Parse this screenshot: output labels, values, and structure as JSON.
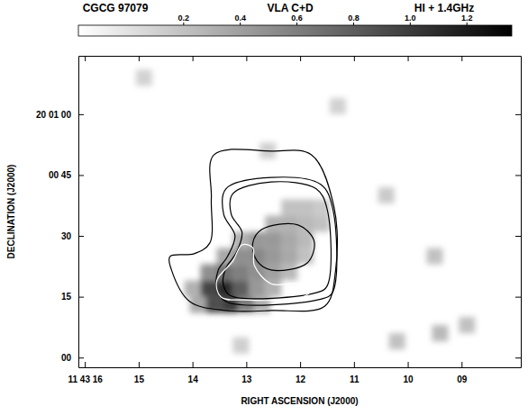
{
  "chart_data": {
    "type": "heatmap",
    "title": "CGCG 97079",
    "subtitle": "VLA C+D",
    "annotation": "HI + 1.4GHz",
    "x_label": "RIGHT ASCENSION (J2000)",
    "y_label": "DECLINATION (J2000)",
    "xlim": [
      16.12,
      7.9
    ],
    "ylim": [
      -2.4,
      74.4
    ],
    "xticks": [
      {
        "value": 16,
        "label": "11 43 16"
      },
      15,
      14,
      13,
      12,
      11,
      10,
      {
        "value": 9,
        "label": "09"
      }
    ],
    "yticks": [
      {
        "value": 0,
        "label": "00"
      },
      15,
      30,
      {
        "value": 45,
        "label": "00 45"
      },
      {
        "value": 60,
        "label": "20 01 00"
      }
    ],
    "colorbar": {
      "range": [
        -0.17,
        1.36
      ],
      "ticks": [
        0.2,
        0.4,
        0.6,
        0.8,
        {
          "value": 1.0,
          "label": "1.0"
        },
        1.2
      ]
    },
    "cell_size": [
      0.3,
      4
    ],
    "cells": {
      "x": [
        13.9,
        13.6,
        13.3,
        13.0,
        12.7,
        14.0,
        13.7,
        13.4,
        13.1,
        12.8,
        12.5,
        13.7,
        13.4,
        13.1,
        12.8,
        12.5,
        12.2,
        13.4,
        13.1,
        12.8,
        12.5,
        12.2,
        11.9,
        13.1,
        12.8,
        12.5,
        12.2,
        11.9,
        12.5,
        12.2,
        11.9,
        11.6,
        12.2,
        11.9,
        11.6,
        10.4,
        9.5,
        10.2,
        9.4,
        8.9,
        12.6,
        14.9,
        11.3,
        13.1
      ],
      "y": [
        13,
        13,
        13,
        13,
        13,
        17,
        17,
        17,
        17,
        17,
        17,
        21,
        21,
        21,
        21,
        21,
        21,
        25,
        25,
        25,
        25,
        25,
        25,
        29,
        29,
        29,
        29,
        29,
        33,
        33,
        33,
        33,
        37,
        37,
        37,
        40,
        25,
        4,
        6,
        8,
        51,
        69,
        62,
        3
      ],
      "values": [
        0.35,
        0.9,
        1.0,
        0.6,
        0.3,
        0.3,
        0.95,
        1.1,
        0.8,
        0.45,
        0.3,
        0.5,
        0.7,
        0.6,
        0.5,
        0.4,
        0.25,
        0.35,
        0.5,
        0.55,
        0.45,
        0.35,
        0.2,
        0.3,
        0.45,
        0.45,
        0.35,
        0.25,
        0.3,
        0.3,
        0.25,
        0.2,
        0.2,
        0.2,
        0.15,
        0.15,
        0.2,
        0.2,
        0.25,
        0.2,
        0.12,
        0.1,
        0.1,
        0.12
      ]
    },
    "contours": [
      {
        "color": "black",
        "x": [
          13.6,
          12.54,
          11.79,
          11.37,
          11.34,
          11.54,
          12.54,
          13.38,
          14.05,
          14.39,
          14.42,
          13.97,
          13.68,
          13.65
        ],
        "y": [
          50.0,
          50.9,
          50.0,
          37.1,
          21.6,
          12.7,
          11.6,
          11.6,
          13.8,
          21.6,
          24.9,
          25.6,
          28.2,
          39.3
        ]
      },
      {
        "color": "black",
        "x": [
          13.38,
          12.54,
          11.62,
          11.4,
          11.4,
          11.62,
          13.38,
          13.55,
          13.52,
          13.35,
          13.21,
          13.42
        ],
        "y": [
          41.6,
          44.4,
          42.7,
          37.1,
          16.0,
          14.4,
          13.8,
          17.1,
          21.6,
          24.9,
          30.0,
          35.3
        ]
      },
      {
        "color": "black",
        "x": [
          13.25,
          12.54,
          11.7,
          11.5,
          11.5,
          11.7,
          13.3,
          13.43,
          13.38,
          13.18,
          13.08,
          13.28
        ],
        "y": [
          40.4,
          43.3,
          41.6,
          36.7,
          17.6,
          16.0,
          15.3,
          18.2,
          22.0,
          26.0,
          30.9,
          35.3
        ]
      },
      {
        "color": "black",
        "x": [
          12.71,
          12.04,
          11.74,
          11.87,
          12.54,
          12.8,
          12.88
        ],
        "y": [
          31.6,
          32.7,
          28.7,
          23.3,
          21.6,
          23.8,
          28.2
        ]
      },
      {
        "color": "white",
        "x": [
          13.47,
          13.55,
          13.25,
          13.08,
          12.88,
          12.85,
          12.54,
          12.04,
          11.79,
          11.96,
          13.05
        ],
        "y": [
          14.9,
          18.9,
          23.8,
          27.8,
          27.1,
          22.7,
          18.2,
          18.2,
          16.7,
          14.9,
          14.2
        ]
      }
    ]
  }
}
